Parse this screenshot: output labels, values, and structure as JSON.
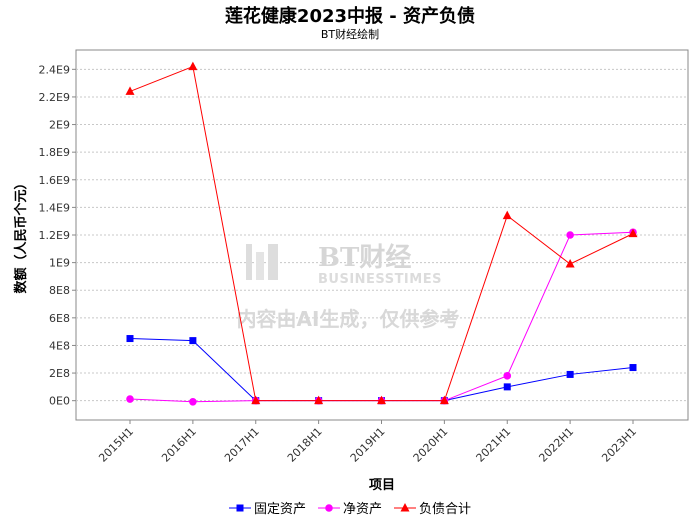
{
  "chart_data": {
    "type": "line",
    "title": "莲花健康2023中报 - 资产负债",
    "subtitle": "BT财经绘制",
    "xlabel": "项目",
    "ylabel": "数额（人民币个元）",
    "categories": [
      "2015H1",
      "2016H1",
      "2017H1",
      "2018H1",
      "2019H1",
      "2020H1",
      "2021H1",
      "2022H1",
      "2023H1"
    ],
    "ylim": [
      -140000000,
      2540000000
    ],
    "yticks": [
      0,
      200000000,
      400000000,
      600000000,
      800000000,
      1000000000,
      1200000000,
      1400000000,
      1600000000,
      1800000000,
      2000000000,
      2200000000,
      2400000000
    ],
    "ytick_labels": [
      "0E0",
      "2E8",
      "4E8",
      "6E8",
      "8E8",
      "1E9",
      "1.2E9",
      "1.4E9",
      "1.6E9",
      "1.8E9",
      "2E9",
      "2.2E9",
      "2.4E9"
    ],
    "grid": true,
    "legend_position": "bottom",
    "series": [
      {
        "name": "固定资产",
        "color": "#0000ff",
        "marker": "square",
        "values": [
          450000000,
          435000000,
          0,
          0,
          0,
          0,
          100000000,
          190000000,
          240000000
        ]
      },
      {
        "name": "净资产",
        "color": "#ff00ff",
        "marker": "circle",
        "values": [
          12000000,
          -8000000,
          0,
          0,
          0,
          0,
          180000000,
          1200000000,
          1220000000
        ]
      },
      {
        "name": "负债合计",
        "color": "#ff0000",
        "marker": "triangle",
        "values": [
          2240000000,
          2420000000,
          0,
          0,
          0,
          0,
          1340000000,
          990000000,
          1210000000
        ]
      }
    ]
  },
  "watermark": {
    "brand": "BT财经",
    "brand_en": "BUSINESSTIMES",
    "notice": "内容由AI生成，仅供参考"
  }
}
